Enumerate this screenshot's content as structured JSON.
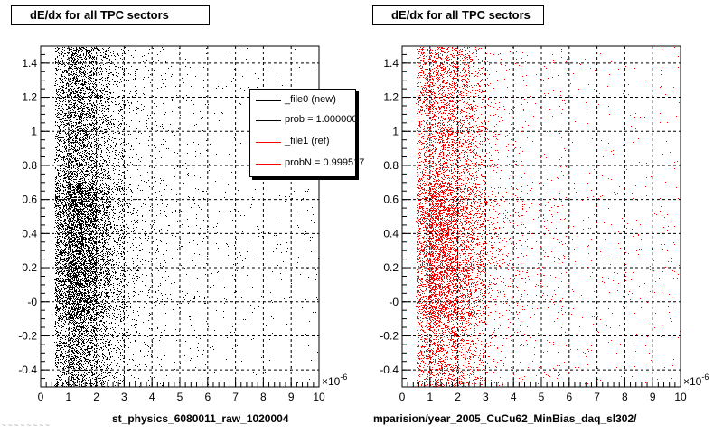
{
  "chart_data": [
    {
      "type": "scatter",
      "title": "dE/dx for all TPC sectors",
      "xlabel": "st_physics_6080011_raw_1020004",
      "x_multiplier": "×10^-6",
      "xlim": [
        0,
        10
      ],
      "ylim": [
        -0.5,
        1.5
      ],
      "x_ticks": [
        "0",
        "1",
        "2",
        "3",
        "4",
        "5",
        "6",
        "7",
        "8",
        "9",
        "10"
      ],
      "y_ticks": [
        "-0.4",
        "-0.2",
        "-0",
        "0.2",
        "0.4",
        "0.6",
        "0.8",
        "1",
        "1.2",
        "1.4"
      ],
      "grid": true,
      "color": "#000000",
      "series": [
        {
          "density": [
            {
              "x": [
                0.5,
                1.0
              ],
              "weight": 2.2
            },
            {
              "x": [
                1.0,
                1.5
              ],
              "weight": 4.0
            },
            {
              "x": [
                1.5,
                2.0
              ],
              "weight": 3.0
            },
            {
              "x": [
                2.0,
                2.5
              ],
              "weight": 1.6
            },
            {
              "x": [
                2.5,
                3.0
              ],
              "weight": 0.8
            },
            {
              "x": [
                3.0,
                3.5
              ],
              "weight": 0.35
            },
            {
              "x": [
                3.5,
                4.5
              ],
              "weight": 0.2
            },
            {
              "x": [
                4.5,
                6.0
              ],
              "weight": 0.1
            },
            {
              "x": [
                6.0,
                10.0
              ],
              "weight": 0.04
            }
          ]
        }
      ],
      "legend": {
        "placement": "top-right",
        "entries": [
          {
            "label": "_file0 (new)",
            "color": "#000000"
          },
          {
            "label": "prob = 1.000000",
            "color": "#000000"
          },
          {
            "label": "_file1 (ref)",
            "color": "#ff0000"
          },
          {
            "label": "probN = 0.999517",
            "color": "#ff0000"
          }
        ]
      }
    },
    {
      "type": "scatter",
      "title": "dE/dx for all TPC sectors",
      "xlabel": "mparision/year_2005_CuCu62_MinBias_daq_sl302/",
      "x_multiplier": "×10^-6",
      "xlim": [
        0,
        10
      ],
      "ylim": [
        -0.5,
        1.5
      ],
      "x_ticks": [
        "0",
        "1",
        "2",
        "3",
        "4",
        "5",
        "6",
        "7",
        "8",
        "9",
        "10"
      ],
      "y_ticks": [
        "-0.4",
        "-0.2",
        "-0",
        "0.2",
        "0.4",
        "0.6",
        "0.8",
        "1",
        "1.2",
        "1.4"
      ],
      "grid": true,
      "color": "#ff0000",
      "series": [
        {
          "density": [
            {
              "x": [
                0.5,
                1.0
              ],
              "weight": 1.6
            },
            {
              "x": [
                1.0,
                1.5
              ],
              "weight": 2.6
            },
            {
              "x": [
                1.5,
                2.0
              ],
              "weight": 2.2
            },
            {
              "x": [
                2.0,
                2.5
              ],
              "weight": 1.5
            },
            {
              "x": [
                2.5,
                3.0
              ],
              "weight": 0.9
            },
            {
              "x": [
                3.0,
                3.5
              ],
              "weight": 0.35
            },
            {
              "x": [
                3.5,
                4.5
              ],
              "weight": 0.18
            },
            {
              "x": [
                4.5,
                6.0
              ],
              "weight": 0.1
            },
            {
              "x": [
                6.0,
                10.0
              ],
              "weight": 0.05
            }
          ]
        }
      ]
    }
  ],
  "footer_text": "~ ~ ~ ~ ~ ~ ~ ~"
}
